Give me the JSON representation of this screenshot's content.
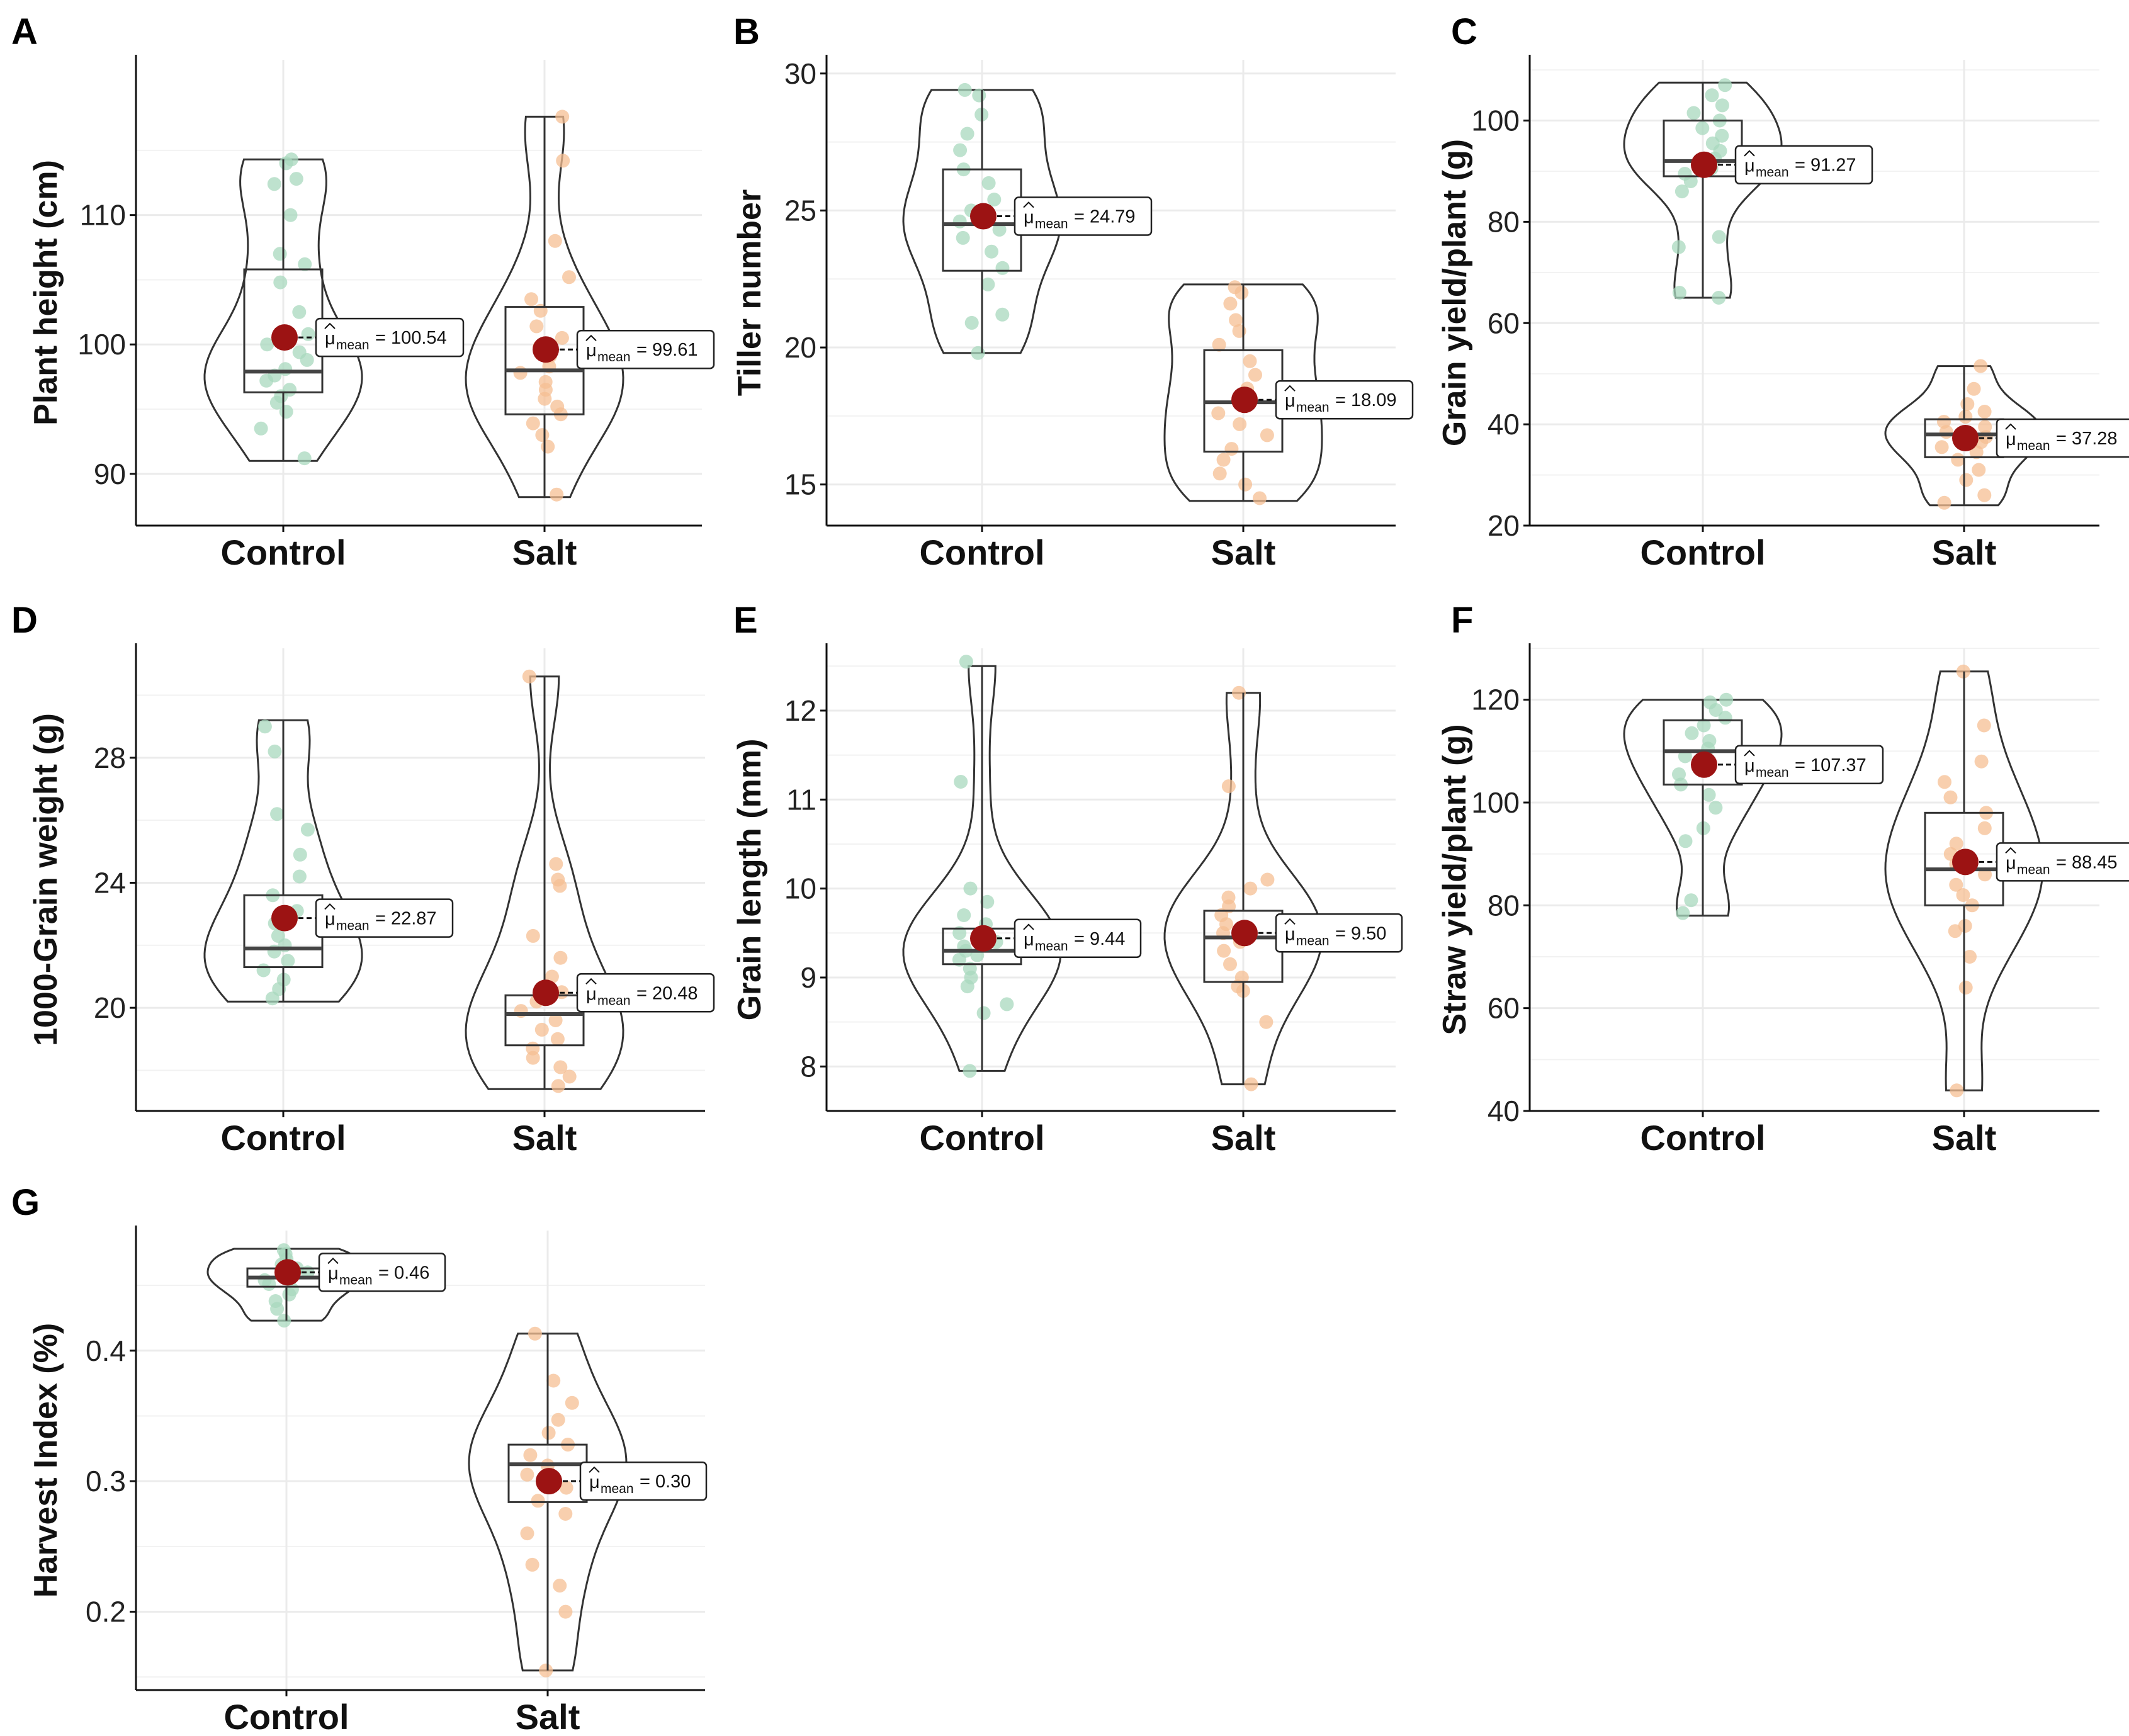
{
  "chart_data": [
    {
      "type": "violin",
      "panel": "A",
      "ylabel": "Plant height (cm)",
      "ylim": [
        86,
        122
      ],
      "yticks": [
        90,
        100,
        110
      ],
      "categories": [
        "Control",
        "Salt"
      ],
      "groups": [
        {
          "name": "Control",
          "min": 91,
          "q1": 96.3,
          "median": 97.9,
          "q3": 105.8,
          "max": 114.3,
          "mean": 100.54,
          "mean_label": "100.54",
          "points": [
            91.2,
            93.5,
            94.8,
            95.5,
            96.0,
            96.5,
            97.2,
            97.6,
            98.1,
            98.8,
            99.4,
            100.0,
            100.8,
            102.5,
            104.8,
            106.2,
            107.0,
            110.0,
            112.4,
            112.8,
            114.0,
            114.3
          ]
        },
        {
          "name": "Salt",
          "min": 88.2,
          "q1": 94.6,
          "median": 98.0,
          "q3": 102.9,
          "max": 117.6,
          "mean": 99.61,
          "mean_label": "99.61",
          "points": [
            88.4,
            92.1,
            93.0,
            93.9,
            94.6,
            95.2,
            95.8,
            96.5,
            97.1,
            97.8,
            98.3,
            99.1,
            99.8,
            100.5,
            101.4,
            102.6,
            103.5,
            105.2,
            108.0,
            114.2,
            117.6
          ]
        }
      ]
    },
    {
      "type": "violin",
      "panel": "B",
      "ylabel": "Tiller number",
      "ylim": [
        13.5,
        30.5
      ],
      "yticks": [
        15,
        20,
        25,
        30
      ],
      "categories": [
        "Control",
        "Salt"
      ],
      "groups": [
        {
          "name": "Control",
          "min": 19.8,
          "q1": 22.8,
          "median": 24.5,
          "q3": 26.5,
          "max": 29.4,
          "mean": 24.79,
          "mean_label": "24.79",
          "points": [
            19.8,
            20.9,
            21.2,
            22.3,
            22.9,
            23.5,
            24.0,
            24.3,
            24.6,
            25.0,
            25.4,
            26.0,
            26.5,
            27.2,
            27.8,
            28.5,
            29.2,
            29.4
          ]
        },
        {
          "name": "Salt",
          "min": 14.4,
          "q1": 16.2,
          "median": 18.0,
          "q3": 19.9,
          "max": 22.3,
          "mean": 18.09,
          "mean_label": "18.09",
          "points": [
            14.5,
            15.0,
            15.4,
            15.9,
            16.3,
            16.8,
            17.2,
            17.6,
            18.1,
            18.5,
            19.0,
            19.5,
            20.1,
            20.6,
            21.0,
            21.6,
            22.0,
            22.2
          ]
        }
      ]
    },
    {
      "type": "violin",
      "panel": "C",
      "ylabel": "Grain yield/plant (g)",
      "ylim": [
        20,
        112
      ],
      "yticks": [
        20,
        40,
        60,
        80,
        100
      ],
      "categories": [
        "Control",
        "Salt"
      ],
      "groups": [
        {
          "name": "Control",
          "min": 65,
          "q1": 89,
          "median": 92,
          "q3": 100,
          "max": 107.5,
          "mean": 91.27,
          "mean_label": "91.27",
          "points": [
            65,
            66,
            75,
            77,
            86,
            88,
            89.5,
            90.5,
            91.5,
            92.5,
            94,
            95.5,
            97,
            98.5,
            100,
            101.5,
            103,
            105,
            107
          ]
        },
        {
          "name": "Salt",
          "min": 24,
          "q1": 33.5,
          "median": 38,
          "q3": 41,
          "max": 51.5,
          "mean": 37.28,
          "mean_label": "37.28",
          "points": [
            24.5,
            26,
            29,
            31,
            33,
            34.5,
            35.5,
            36.5,
            37.5,
            38.5,
            39.5,
            40.5,
            41.5,
            42.5,
            44,
            47,
            51.5
          ]
        }
      ]
    },
    {
      "type": "violin",
      "panel": "D",
      "ylabel": "1000-Grain weight (g)",
      "ylim": [
        16.7,
        31.5
      ],
      "yticks": [
        20,
        24,
        28
      ],
      "categories": [
        "Control",
        "Salt"
      ],
      "groups": [
        {
          "name": "Control",
          "min": 20.2,
          "q1": 21.3,
          "median": 21.9,
          "q3": 23.6,
          "max": 29.2,
          "mean": 22.87,
          "mean_label": "22.87",
          "points": [
            20.3,
            20.6,
            20.9,
            21.2,
            21.5,
            21.8,
            22.0,
            22.3,
            22.7,
            23.1,
            23.6,
            24.2,
            24.9,
            25.7,
            26.2,
            28.2,
            29.0
          ]
        },
        {
          "name": "Salt",
          "min": 17.4,
          "q1": 18.8,
          "median": 19.8,
          "q3": 20.4,
          "max": 30.6,
          "mean": 20.48,
          "mean_label": "20.48",
          "points": [
            17.5,
            17.8,
            18.1,
            18.4,
            18.7,
            19.0,
            19.3,
            19.6,
            19.9,
            20.2,
            20.5,
            21.0,
            21.6,
            22.3,
            23.9,
            24.1,
            24.6,
            30.6
          ]
        }
      ]
    },
    {
      "type": "violin",
      "panel": "E",
      "ylabel": "Grain length (mm)",
      "ylim": [
        7.5,
        12.7
      ],
      "yticks": [
        8,
        9,
        10,
        11,
        12
      ],
      "categories": [
        "Control",
        "Salt"
      ],
      "groups": [
        {
          "name": "Control",
          "min": 7.95,
          "q1": 9.15,
          "median": 9.3,
          "q3": 9.55,
          "max": 12.5,
          "mean": 9.44,
          "mean_label": "9.44",
          "points": [
            7.95,
            8.6,
            8.7,
            8.9,
            9.0,
            9.1,
            9.2,
            9.25,
            9.3,
            9.35,
            9.4,
            9.5,
            9.6,
            9.7,
            9.85,
            10.0,
            11.2,
            12.55
          ]
        },
        {
          "name": "Salt",
          "min": 7.8,
          "q1": 8.95,
          "median": 9.45,
          "q3": 9.75,
          "max": 12.2,
          "mean": 9.5,
          "mean_label": "9.50",
          "points": [
            7.8,
            8.5,
            8.85,
            8.9,
            9.0,
            9.15,
            9.3,
            9.4,
            9.5,
            9.6,
            9.7,
            9.8,
            9.9,
            10.0,
            10.1,
            11.15,
            12.2
          ]
        }
      ]
    },
    {
      "type": "violin",
      "panel": "F",
      "ylabel": "Straw yield/plant (g)",
      "ylim": [
        40,
        130
      ],
      "yticks": [
        40,
        60,
        80,
        100,
        120
      ],
      "categories": [
        "Control",
        "Salt"
      ],
      "groups": [
        {
          "name": "Control",
          "min": 78,
          "q1": 103.5,
          "median": 110,
          "q3": 116,
          "max": 120,
          "mean": 107.37,
          "mean_label": "107.37",
          "points": [
            78.5,
            81,
            92.5,
            95,
            99,
            101.5,
            103.5,
            105.5,
            107,
            109,
            110.5,
            112,
            113.5,
            115,
            116.5,
            118,
            119.5,
            120
          ]
        },
        {
          "name": "Salt",
          "min": 44,
          "q1": 80,
          "median": 87,
          "q3": 98,
          "max": 125.5,
          "mean": 88.45,
          "mean_label": "88.45",
          "points": [
            44,
            64,
            70,
            75,
            76,
            80,
            82,
            84,
            86,
            88,
            90,
            92,
            95,
            98,
            101,
            104,
            108,
            115,
            125.5
          ]
        }
      ]
    },
    {
      "type": "violin",
      "panel": "G",
      "ylabel": "Harvest Index (%)",
      "ylim": [
        0.14,
        0.492
      ],
      "yticks": [
        0.2,
        0.3,
        0.4
      ],
      "yticklabels": [
        "0.2",
        "0.3",
        "0.4"
      ],
      "categories": [
        "Control",
        "Salt"
      ],
      "groups": [
        {
          "name": "Control",
          "min": 0.423,
          "q1": 0.449,
          "median": 0.456,
          "q3": 0.463,
          "max": 0.478,
          "mean": 0.46,
          "mean_label": "0.46",
          "points": [
            0.423,
            0.432,
            0.438,
            0.443,
            0.447,
            0.451,
            0.454,
            0.457,
            0.46,
            0.463,
            0.466,
            0.47,
            0.474,
            0.477
          ]
        },
        {
          "name": "Salt",
          "min": 0.155,
          "q1": 0.284,
          "median": 0.313,
          "q3": 0.328,
          "max": 0.413,
          "mean": 0.3,
          "mean_label": "0.30",
          "points": [
            0.155,
            0.2,
            0.22,
            0.236,
            0.26,
            0.275,
            0.285,
            0.295,
            0.305,
            0.312,
            0.32,
            0.328,
            0.337,
            0.347,
            0.36,
            0.377,
            0.413
          ]
        }
      ]
    }
  ],
  "legend": {
    "mu_symbol": "μ",
    "mean_subscript": "mean"
  },
  "colors": {
    "control_points": "#a8d8be",
    "salt_points": "#f6bf93",
    "mean_dot": "#9c1313",
    "outline": "#333333",
    "grid": "#ebebeb"
  }
}
